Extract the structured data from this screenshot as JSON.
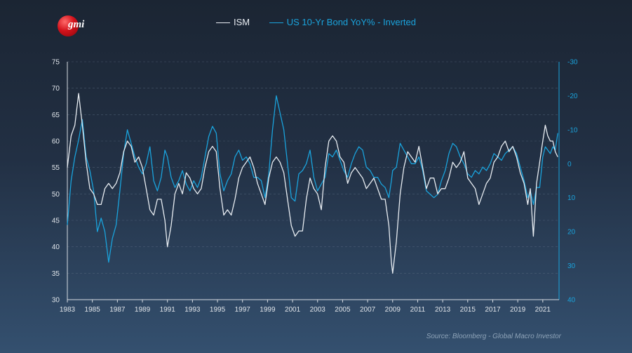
{
  "logo": {
    "text": "gmi"
  },
  "source": "Source: Bloomberg - Global Macro Investor",
  "chart_data": {
    "type": "line",
    "title": "",
    "grid": true,
    "legend_position": "top-center",
    "x_axis": {
      "range": [
        1983,
        2022.3
      ],
      "ticks": [
        "1983",
        "1985",
        "1987",
        "1989",
        "1991",
        "1993",
        "1995",
        "1997",
        "1999",
        "2001",
        "2003",
        "2005",
        "2007",
        "2009",
        "2011",
        "2013",
        "2015",
        "2017",
        "2019",
        "2021"
      ]
    },
    "y_left": {
      "range": [
        30,
        75
      ],
      "ticks": [
        30,
        35,
        40,
        45,
        50,
        55,
        60,
        65,
        70,
        75
      ]
    },
    "y_right": {
      "range": [
        -30,
        40
      ],
      "inverted": true,
      "ticks": [
        "-30",
        "-20",
        "-10",
        "0",
        "10",
        "20",
        "30",
        "40"
      ]
    },
    "series": [
      {
        "name": "ISM",
        "axis": "left",
        "color": "#e8edf2",
        "points": [
          [
            1983.0,
            55
          ],
          [
            1983.3,
            61
          ],
          [
            1983.6,
            63
          ],
          [
            1983.9,
            69
          ],
          [
            1984.2,
            63
          ],
          [
            1984.5,
            56
          ],
          [
            1984.8,
            51
          ],
          [
            1985.1,
            50
          ],
          [
            1985.4,
            48
          ],
          [
            1985.7,
            48
          ],
          [
            1986.0,
            51
          ],
          [
            1986.3,
            52
          ],
          [
            1986.6,
            51
          ],
          [
            1986.9,
            52
          ],
          [
            1987.2,
            54
          ],
          [
            1987.5,
            58
          ],
          [
            1987.8,
            60
          ],
          [
            1988.1,
            59
          ],
          [
            1988.4,
            56
          ],
          [
            1988.7,
            57
          ],
          [
            1989.0,
            55
          ],
          [
            1989.3,
            51
          ],
          [
            1989.6,
            47
          ],
          [
            1989.9,
            46
          ],
          [
            1990.2,
            49
          ],
          [
            1990.5,
            49
          ],
          [
            1990.8,
            45
          ],
          [
            1991.0,
            40
          ],
          [
            1991.3,
            44
          ],
          [
            1991.6,
            50
          ],
          [
            1991.9,
            52
          ],
          [
            1992.2,
            50
          ],
          [
            1992.5,
            54
          ],
          [
            1992.8,
            53
          ],
          [
            1993.1,
            51
          ],
          [
            1993.4,
            50
          ],
          [
            1993.7,
            51
          ],
          [
            1994.0,
            55
          ],
          [
            1994.3,
            58
          ],
          [
            1994.6,
            59
          ],
          [
            1994.9,
            58
          ],
          [
            1995.2,
            51
          ],
          [
            1995.5,
            46
          ],
          [
            1995.8,
            47
          ],
          [
            1996.1,
            46
          ],
          [
            1996.4,
            49
          ],
          [
            1996.7,
            53
          ],
          [
            1997.0,
            55
          ],
          [
            1997.3,
            56
          ],
          [
            1997.6,
            57
          ],
          [
            1997.9,
            55
          ],
          [
            1998.2,
            52
          ],
          [
            1998.5,
            50
          ],
          [
            1998.8,
            48
          ],
          [
            1999.1,
            53
          ],
          [
            1999.4,
            56
          ],
          [
            1999.7,
            57
          ],
          [
            2000.0,
            56
          ],
          [
            2000.3,
            54
          ],
          [
            2000.6,
            49
          ],
          [
            2000.9,
            44
          ],
          [
            2001.2,
            42
          ],
          [
            2001.5,
            43
          ],
          [
            2001.8,
            43
          ],
          [
            2002.1,
            49
          ],
          [
            2002.4,
            53
          ],
          [
            2002.7,
            51
          ],
          [
            2003.0,
            50
          ],
          [
            2003.3,
            47
          ],
          [
            2003.6,
            55
          ],
          [
            2003.9,
            60
          ],
          [
            2004.2,
            61
          ],
          [
            2004.5,
            60
          ],
          [
            2004.8,
            57
          ],
          [
            2005.1,
            56
          ],
          [
            2005.4,
            52
          ],
          [
            2005.7,
            54
          ],
          [
            2006.0,
            55
          ],
          [
            2006.3,
            54
          ],
          [
            2006.6,
            53
          ],
          [
            2006.9,
            51
          ],
          [
            2007.2,
            52
          ],
          [
            2007.5,
            53
          ],
          [
            2007.8,
            51
          ],
          [
            2008.1,
            49
          ],
          [
            2008.4,
            49
          ],
          [
            2008.7,
            44
          ],
          [
            2008.9,
            37
          ],
          [
            2009.0,
            35
          ],
          [
            2009.3,
            41
          ],
          [
            2009.6,
            50
          ],
          [
            2009.9,
            55
          ],
          [
            2010.2,
            58
          ],
          [
            2010.5,
            57
          ],
          [
            2010.8,
            56
          ],
          [
            2011.1,
            59
          ],
          [
            2011.4,
            55
          ],
          [
            2011.7,
            51
          ],
          [
            2012.0,
            53
          ],
          [
            2012.3,
            53
          ],
          [
            2012.6,
            50
          ],
          [
            2012.9,
            51
          ],
          [
            2013.2,
            51
          ],
          [
            2013.5,
            53
          ],
          [
            2013.8,
            56
          ],
          [
            2014.1,
            55
          ],
          [
            2014.4,
            56
          ],
          [
            2014.7,
            58
          ],
          [
            2015.0,
            53
          ],
          [
            2015.3,
            52
          ],
          [
            2015.6,
            51
          ],
          [
            2015.9,
            48
          ],
          [
            2016.2,
            50
          ],
          [
            2016.5,
            52
          ],
          [
            2016.8,
            53
          ],
          [
            2017.1,
            56
          ],
          [
            2017.4,
            57
          ],
          [
            2017.7,
            59
          ],
          [
            2018.0,
            60
          ],
          [
            2018.3,
            58
          ],
          [
            2018.6,
            59
          ],
          [
            2018.9,
            57
          ],
          [
            2019.2,
            54
          ],
          [
            2019.5,
            52
          ],
          [
            2019.8,
            48
          ],
          [
            2020.0,
            51
          ],
          [
            2020.25,
            42
          ],
          [
            2020.5,
            52
          ],
          [
            2020.75,
            56
          ],
          [
            2021.0,
            60
          ],
          [
            2021.2,
            63
          ],
          [
            2021.4,
            61
          ],
          [
            2021.6,
            60
          ],
          [
            2021.8,
            60
          ],
          [
            2022.0,
            58
          ],
          [
            2022.2,
            57
          ]
        ]
      },
      {
        "name": "US 10-Yr Bond YoY% - Inverted",
        "axis": "right",
        "color": "#1aa3dc",
        "points": [
          [
            1983.0,
            18
          ],
          [
            1983.3,
            5
          ],
          [
            1983.6,
            -2
          ],
          [
            1983.9,
            -7
          ],
          [
            1984.2,
            -13
          ],
          [
            1984.5,
            -2
          ],
          [
            1984.8,
            2
          ],
          [
            1985.1,
            8
          ],
          [
            1985.4,
            20
          ],
          [
            1985.7,
            16
          ],
          [
            1986.0,
            20
          ],
          [
            1986.3,
            29
          ],
          [
            1986.6,
            22
          ],
          [
            1986.9,
            18
          ],
          [
            1987.2,
            8
          ],
          [
            1987.5,
            -3
          ],
          [
            1987.8,
            -10
          ],
          [
            1988.1,
            -6
          ],
          [
            1988.4,
            -2
          ],
          [
            1988.7,
            1
          ],
          [
            1989.0,
            3
          ],
          [
            1989.3,
            0
          ],
          [
            1989.6,
            -5
          ],
          [
            1989.9,
            5
          ],
          [
            1990.2,
            8
          ],
          [
            1990.5,
            4
          ],
          [
            1990.8,
            -4
          ],
          [
            1991.0,
            -2
          ],
          [
            1991.3,
            4
          ],
          [
            1991.6,
            7
          ],
          [
            1991.9,
            5
          ],
          [
            1992.2,
            2
          ],
          [
            1992.5,
            6
          ],
          [
            1992.8,
            8
          ],
          [
            1993.1,
            5
          ],
          [
            1993.4,
            7
          ],
          [
            1993.7,
            4
          ],
          [
            1994.0,
            -2
          ],
          [
            1994.3,
            -8
          ],
          [
            1994.6,
            -11
          ],
          [
            1994.9,
            -9
          ],
          [
            1995.2,
            3
          ],
          [
            1995.5,
            8
          ],
          [
            1995.8,
            5
          ],
          [
            1996.1,
            3
          ],
          [
            1996.4,
            -2
          ],
          [
            1996.7,
            -4
          ],
          [
            1997.0,
            -1
          ],
          [
            1997.3,
            -2
          ],
          [
            1997.6,
            0
          ],
          [
            1997.9,
            4
          ],
          [
            1998.2,
            4
          ],
          [
            1998.5,
            5
          ],
          [
            1998.8,
            10
          ],
          [
            1999.1,
            3
          ],
          [
            1999.4,
            -10
          ],
          [
            1999.7,
            -20
          ],
          [
            2000.0,
            -15
          ],
          [
            2000.3,
            -10
          ],
          [
            2000.6,
            0
          ],
          [
            2000.9,
            10
          ],
          [
            2001.2,
            11
          ],
          [
            2001.5,
            3
          ],
          [
            2001.8,
            2
          ],
          [
            2002.1,
            0
          ],
          [
            2002.4,
            -4
          ],
          [
            2002.7,
            4
          ],
          [
            2003.0,
            8
          ],
          [
            2003.3,
            6
          ],
          [
            2003.6,
            4
          ],
          [
            2003.9,
            -3
          ],
          [
            2004.2,
            -2
          ],
          [
            2004.5,
            -4
          ],
          [
            2004.8,
            -1
          ],
          [
            2005.1,
            2
          ],
          [
            2005.4,
            4
          ],
          [
            2005.7,
            0
          ],
          [
            2006.0,
            -3
          ],
          [
            2006.3,
            -5
          ],
          [
            2006.6,
            -4
          ],
          [
            2006.9,
            1
          ],
          [
            2007.2,
            2
          ],
          [
            2007.5,
            4
          ],
          [
            2007.8,
            4
          ],
          [
            2008.1,
            6
          ],
          [
            2008.4,
            7
          ],
          [
            2008.7,
            10
          ],
          [
            2008.9,
            5
          ],
          [
            2009.0,
            2
          ],
          [
            2009.3,
            1
          ],
          [
            2009.6,
            -6
          ],
          [
            2009.9,
            -4
          ],
          [
            2010.2,
            -2
          ],
          [
            2010.5,
            0
          ],
          [
            2010.8,
            0
          ],
          [
            2011.1,
            -2
          ],
          [
            2011.4,
            2
          ],
          [
            2011.7,
            8
          ],
          [
            2012.0,
            9
          ],
          [
            2012.3,
            10
          ],
          [
            2012.6,
            9
          ],
          [
            2012.9,
            5
          ],
          [
            2013.2,
            2
          ],
          [
            2013.5,
            -3
          ],
          [
            2013.8,
            -6
          ],
          [
            2014.1,
            -5
          ],
          [
            2014.4,
            -2
          ],
          [
            2014.7,
            0
          ],
          [
            2015.0,
            3
          ],
          [
            2015.3,
            4
          ],
          [
            2015.6,
            2
          ],
          [
            2015.9,
            3
          ],
          [
            2016.2,
            1
          ],
          [
            2016.5,
            2
          ],
          [
            2016.8,
            0
          ],
          [
            2017.1,
            -3
          ],
          [
            2017.4,
            -2
          ],
          [
            2017.7,
            -1
          ],
          [
            2018.0,
            -3
          ],
          [
            2018.3,
            -4
          ],
          [
            2018.6,
            -5
          ],
          [
            2018.9,
            -3
          ],
          [
            2019.2,
            1
          ],
          [
            2019.5,
            5
          ],
          [
            2019.8,
            10
          ],
          [
            2020.0,
            8
          ],
          [
            2020.25,
            12
          ],
          [
            2020.5,
            7
          ],
          [
            2020.75,
            7
          ],
          [
            2021.0,
            -2
          ],
          [
            2021.2,
            -5
          ],
          [
            2021.4,
            -4
          ],
          [
            2021.6,
            -3
          ],
          [
            2021.8,
            -5
          ],
          [
            2022.0,
            -4
          ],
          [
            2022.2,
            -9
          ]
        ]
      }
    ]
  }
}
